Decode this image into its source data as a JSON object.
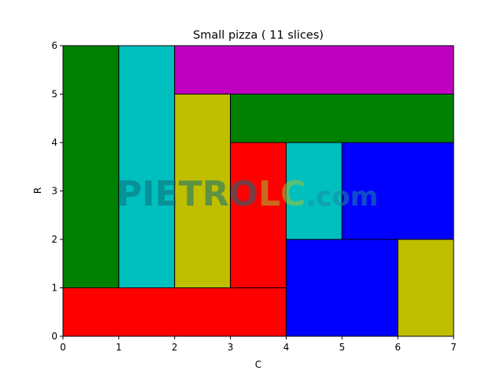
{
  "chart_data": {
    "type": "rectangles",
    "title": "Small pizza ( 11 slices)",
    "xlabel": "C",
    "ylabel": "R",
    "xlim": [
      0,
      7
    ],
    "ylim": [
      0,
      6
    ],
    "xticks": [
      "0",
      "1",
      "2",
      "3",
      "4",
      "5",
      "6",
      "7"
    ],
    "yticks": [
      "0",
      "1",
      "2",
      "3",
      "4",
      "5",
      "6"
    ],
    "grid": false,
    "colors": {
      "green": "#008000",
      "cyan": "#00bfbf",
      "magenta": "#bf00bf",
      "yellow": "#bfbf00",
      "red": "#ff0000",
      "blue": "#0000ff",
      "edge": "#000000"
    },
    "slices": [
      {
        "c0": 0,
        "c1": 1,
        "r0": 1,
        "r1": 6,
        "color": "green"
      },
      {
        "c0": 1,
        "c1": 2,
        "r0": 1,
        "r1": 6,
        "color": "cyan"
      },
      {
        "c0": 2,
        "c1": 7,
        "r0": 5,
        "r1": 6,
        "color": "magenta"
      },
      {
        "c0": 2,
        "c1": 3,
        "r0": 1,
        "r1": 5,
        "color": "yellow"
      },
      {
        "c0": 3,
        "c1": 7,
        "r0": 4,
        "r1": 5,
        "color": "green"
      },
      {
        "c0": 3,
        "c1": 4,
        "r0": 1,
        "r1": 4,
        "color": "red"
      },
      {
        "c0": 4,
        "c1": 5,
        "r0": 2,
        "r1": 4,
        "color": "cyan"
      },
      {
        "c0": 5,
        "c1": 7,
        "r0": 2,
        "r1": 4,
        "color": "blue"
      },
      {
        "c0": 0,
        "c1": 4,
        "r0": 0,
        "r1": 1,
        "color": "red"
      },
      {
        "c0": 4,
        "c1": 6,
        "r0": 0,
        "r1": 2,
        "color": "blue"
      },
      {
        "c0": 6,
        "c1": 7,
        "r0": 0,
        "r1": 2,
        "color": "yellow"
      }
    ]
  },
  "watermark": {
    "part1": "PIETRO",
    "part2": "LC",
    "part3": ".com",
    "color1": "#0e6e78",
    "color2": "#9ec43a",
    "color3": "#1c8aa2"
  }
}
